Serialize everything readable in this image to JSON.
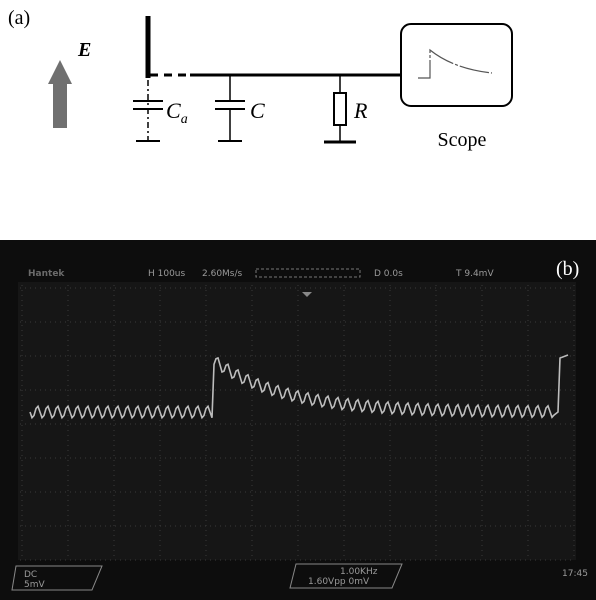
{
  "panel_a": {
    "label": "(a)",
    "field_label": "E",
    "components": {
      "ca": {
        "symbol": "C",
        "subscript": "a"
      },
      "c": {
        "symbol": "C"
      },
      "r": {
        "symbol": "R"
      }
    },
    "scope_label": "Scope"
  },
  "panel_b": {
    "label": "(b)",
    "header": {
      "brand": "Hantek",
      "horizontal": "H 100us",
      "sample_rate": "2.60Ms/s",
      "delay": "D 0.0s",
      "trigger": "T 9.4mV"
    },
    "footer": {
      "channel_coupling": "DC",
      "channel_scale": "5mV",
      "trigger_freq": "1.00KHz",
      "trigger_vpp": "1.60Vpp 0mV",
      "time": "17:45"
    }
  }
}
